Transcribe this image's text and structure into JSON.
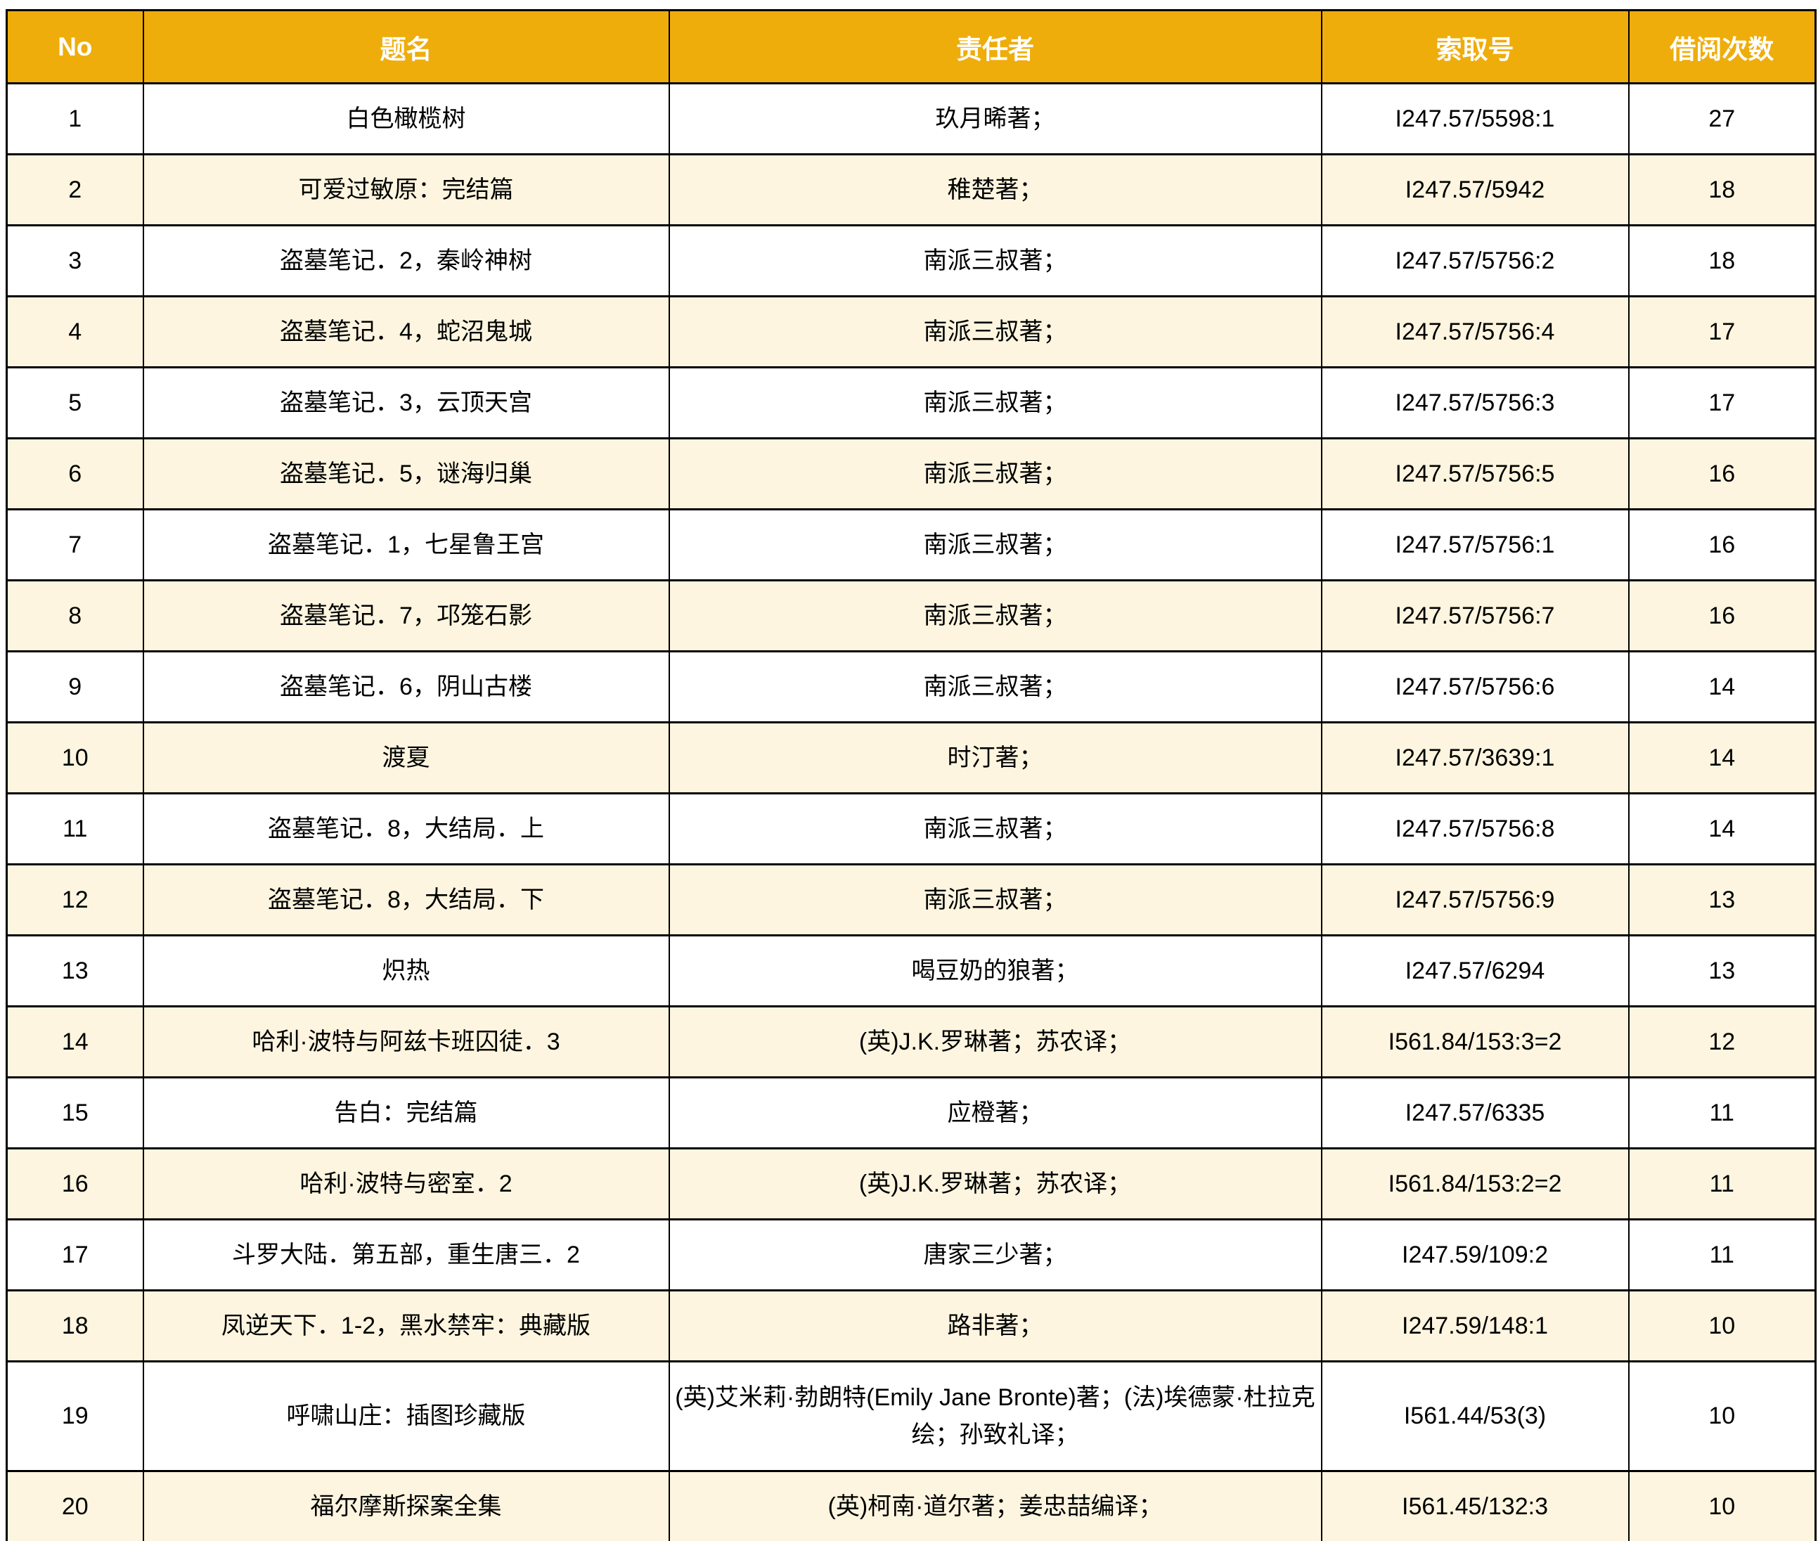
{
  "table": {
    "headers": [
      "No",
      "题名",
      "责任者",
      "索取号",
      "借阅次数"
    ],
    "rows": [
      {
        "no": "1",
        "title": "白色橄榄树",
        "author": "玖月晞著；",
        "call_no": "I247.57/5598:1",
        "count": "27"
      },
      {
        "no": "2",
        "title": "可爱过敏原：完结篇",
        "author": "稚楚著；",
        "call_no": "I247.57/5942",
        "count": "18"
      },
      {
        "no": "3",
        "title": "盗墓笔记．2，秦岭神树",
        "author": "南派三叔著；",
        "call_no": "I247.57/5756:2",
        "count": "18"
      },
      {
        "no": "4",
        "title": "盗墓笔记．4，蛇沼鬼城",
        "author": "南派三叔著；",
        "call_no": "I247.57/5756:4",
        "count": "17"
      },
      {
        "no": "5",
        "title": "盗墓笔记．3，云顶天宫",
        "author": "南派三叔著；",
        "call_no": "I247.57/5756:3",
        "count": "17"
      },
      {
        "no": "6",
        "title": "盗墓笔记．5，谜海归巢",
        "author": "南派三叔著；",
        "call_no": "I247.57/5756:5",
        "count": "16"
      },
      {
        "no": "7",
        "title": "盗墓笔记．1，七星鲁王宫",
        "author": "南派三叔著；",
        "call_no": "I247.57/5756:1",
        "count": "16"
      },
      {
        "no": "8",
        "title": "盗墓笔记．7，邛笼石影",
        "author": "南派三叔著；",
        "call_no": "I247.57/5756:7",
        "count": "16"
      },
      {
        "no": "9",
        "title": "盗墓笔记．6，阴山古楼",
        "author": "南派三叔著；",
        "call_no": "I247.57/5756:6",
        "count": "14"
      },
      {
        "no": "10",
        "title": "渡夏",
        "author": "时汀著；",
        "call_no": "I247.57/3639:1",
        "count": "14"
      },
      {
        "no": "11",
        "title": "盗墓笔记．8，大结局．上",
        "author": "南派三叔著；",
        "call_no": "I247.57/5756:8",
        "count": "14"
      },
      {
        "no": "12",
        "title": "盗墓笔记．8，大结局．下",
        "author": "南派三叔著；",
        "call_no": "I247.57/5756:9",
        "count": "13"
      },
      {
        "no": "13",
        "title": "炽热",
        "author": "喝豆奶的狼著；",
        "call_no": "I247.57/6294",
        "count": "13"
      },
      {
        "no": "14",
        "title": "哈利·波特与阿兹卡班囚徒．3",
        "author": "(英)J.K.罗琳著；苏农译；",
        "call_no": "I561.84/153:3=2",
        "count": "12"
      },
      {
        "no": "15",
        "title": "告白：完结篇",
        "author": "应橙著；",
        "call_no": "I247.57/6335",
        "count": "11"
      },
      {
        "no": "16",
        "title": "哈利·波特与密室．2",
        "author": "(英)J.K.罗琳著；苏农译；",
        "call_no": "I561.84/153:2=2",
        "count": "11"
      },
      {
        "no": "17",
        "title": "斗罗大陆．第五部，重生唐三．2",
        "author": "唐家三少著；",
        "call_no": "I247.59/109:2",
        "count": "11"
      },
      {
        "no": "18",
        "title": "凤逆天下．1-2，黑水禁牢：典藏版",
        "author": "路非著；",
        "call_no": "I247.59/148:1",
        "count": "10"
      },
      {
        "no": "19",
        "title": "呼啸山庄：插图珍藏版",
        "author": "(英)艾米莉·勃朗特(Emily Jane Bronte)著；(法)埃德蒙·杜拉克绘；孙致礼译；",
        "call_no": "I561.44/53(3)",
        "count": "10"
      },
      {
        "no": "20",
        "title": "福尔摩斯探案全集",
        "author": "(英)柯南·道尔著；姜忠喆编译；",
        "call_no": "I561.45/132:3",
        "count": "10"
      }
    ]
  },
  "colors": {
    "header_bg": "#EEAD0B",
    "header_text": "#FFFFFF",
    "alt_row_bg": "#FDF5DF",
    "row_bg": "#FFFFFF",
    "border": "#000000"
  }
}
